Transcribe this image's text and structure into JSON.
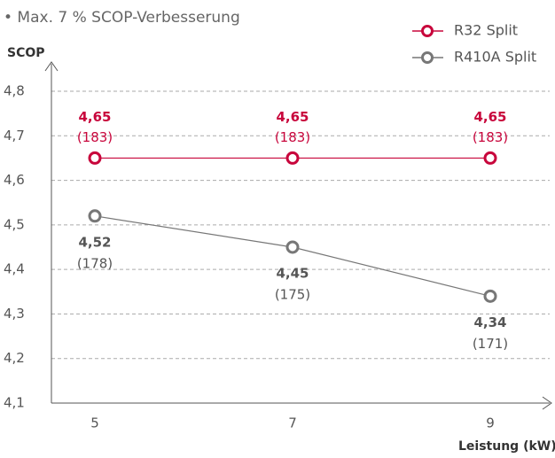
{
  "chart_data": {
    "type": "line",
    "title": "• Max. 7 % SCOP-Verbesserung",
    "y_label": "SCOP",
    "x_label": "Leistung (kW)",
    "categories": [
      "5",
      "7",
      "9"
    ],
    "ylim": [
      4.1,
      4.8
    ],
    "yticks": [
      {
        "value": 4.1,
        "label": "4,1"
      },
      {
        "value": 4.2,
        "label": "4,2"
      },
      {
        "value": 4.3,
        "label": "4,3"
      },
      {
        "value": 4.4,
        "label": "4,4"
      },
      {
        "value": 4.5,
        "label": "4,5"
      },
      {
        "value": 4.6,
        "label": "4,6"
      },
      {
        "value": 4.7,
        "label": "4,7"
      },
      {
        "value": 4.8,
        "label": "4,8"
      }
    ],
    "grid": true,
    "legend": "top-right",
    "series": [
      {
        "name": "R32 Split",
        "color": "#c8063c",
        "values": [
          4.65,
          4.65,
          4.65
        ],
        "value_labels": [
          "4,65",
          "4,65",
          "4,65"
        ],
        "sublabels": [
          "(183)",
          "(183)",
          "(183)"
        ],
        "label_position": "above"
      },
      {
        "name": "R410A Split",
        "color": "#777777",
        "values": [
          4.52,
          4.45,
          4.34
        ],
        "value_labels": [
          "4,52",
          "4,45",
          "4,34"
        ],
        "sublabels": [
          "(178)",
          "(175)",
          "(171)"
        ],
        "label_position": "below"
      }
    ]
  }
}
